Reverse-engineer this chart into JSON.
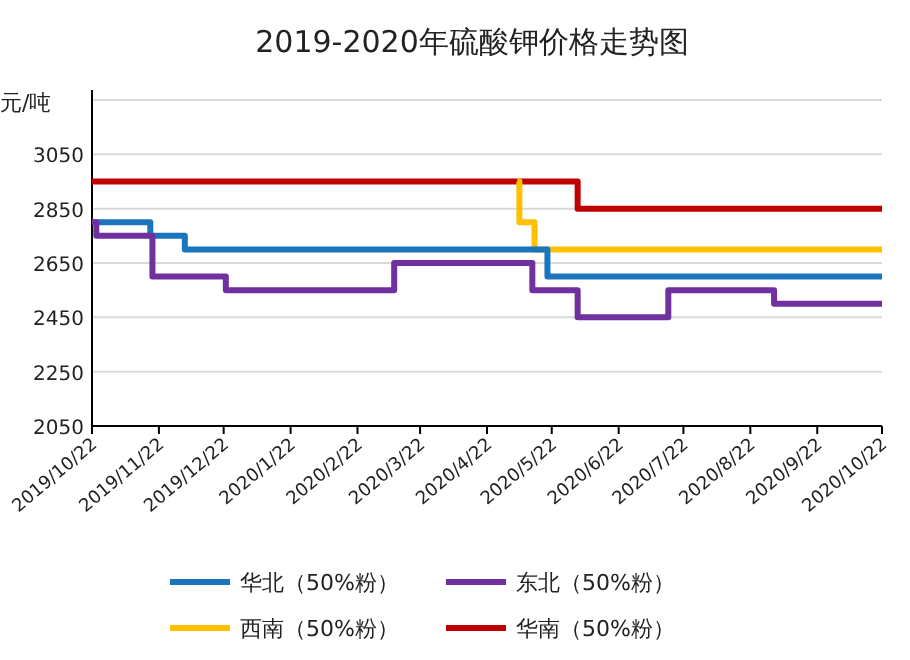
{
  "chart_data": {
    "type": "step",
    "title": "2019-2020年硫酸钾价格走势图",
    "ylabel": "元/吨",
    "xlim": [
      "2019-10-22",
      "2020-10-22"
    ],
    "xticks": [
      {
        "value": "2019-10-22",
        "label": "2019/10/22"
      },
      {
        "value": "2019-11-22",
        "label": "2019/11/22"
      },
      {
        "value": "2019-12-22",
        "label": "2019/12/22"
      },
      {
        "value": "2020-01-22",
        "label": "2020/1/22"
      },
      {
        "value": "2020-02-22",
        "label": "2020/2/22"
      },
      {
        "value": "2020-03-22",
        "label": "2020/3/22"
      },
      {
        "value": "2020-04-22",
        "label": "2020/4/22"
      },
      {
        "value": "2020-05-22",
        "label": "2020/5/22"
      },
      {
        "value": "2020-06-22",
        "label": "2020/6/22"
      },
      {
        "value": "2020-07-22",
        "label": "2020/7/22"
      },
      {
        "value": "2020-08-22",
        "label": "2020/8/22"
      },
      {
        "value": "2020-09-22",
        "label": "2020/9/22"
      },
      {
        "value": "2020-10-22",
        "label": "2020/10/22"
      }
    ],
    "ylim": [
      2050,
      3250
    ],
    "yticks": [
      2050,
      2250,
      2450,
      2650,
      2850,
      3050,
      {
        "value": 3250,
        "label": null
      }
    ],
    "grid": "y",
    "legend": "bottom",
    "line_style": "solid",
    "marker": "none",
    "series": [
      {
        "name": "华北（50%粉）",
        "color": "#1a75bc",
        "x": [
          "2019-10-22",
          "2019-11-18",
          "2019-12-04",
          "2020-05-20",
          "2020-10-22"
        ],
        "values": [
          2800,
          2750,
          2700,
          2600,
          2600
        ]
      },
      {
        "name": "东北（50%粉）",
        "color": "#7030a0",
        "x": [
          "2019-10-22",
          "2019-10-24",
          "2019-11-19",
          "2019-12-23",
          "2020-03-10",
          "2020-05-13",
          "2020-06-03",
          "2020-07-15",
          "2020-09-02",
          "2020-10-22"
        ],
        "values": [
          2800,
          2750,
          2600,
          2550,
          2650,
          2550,
          2450,
          2550,
          2500,
          2500
        ]
      },
      {
        "name": "西南（50%粉）",
        "color": "#ffc000",
        "x": [
          "2020-05-06",
          "2020-05-07",
          "2020-05-14",
          "2020-10-22"
        ],
        "values": [
          2950,
          2800,
          2700,
          2700
        ]
      },
      {
        "name": "华南（50%粉）",
        "color": "#c00000",
        "x": [
          "2019-10-22",
          "2020-06-03",
          "2020-10-22"
        ],
        "values": [
          2950,
          2850,
          2850
        ]
      }
    ]
  }
}
